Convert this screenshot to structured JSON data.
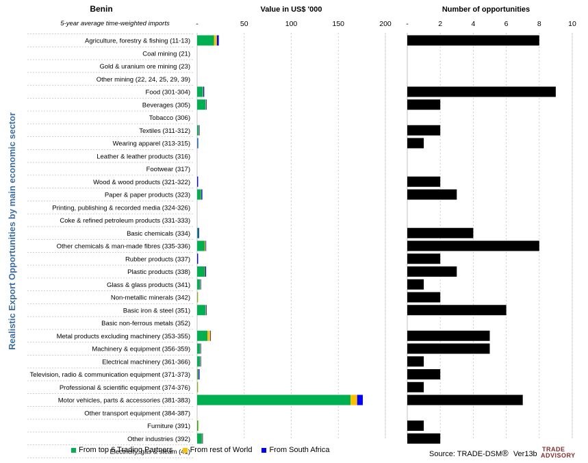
{
  "header": {
    "country": "Benin",
    "subtitle": "5-year average time-weighted imports",
    "left_axis_title": "Value in US$ '000",
    "right_axis_title": "Number of opportunities"
  },
  "y_axis_label": "Realistic Export Opportunities by main economic sector",
  "legend": {
    "top6": "From top 6 Trading Partners",
    "row": "From rest of World",
    "sa": "From South Africa"
  },
  "source": {
    "text": "Source: TRADE-DSM",
    "registered": "®",
    "version": "Ver13b"
  },
  "logo": {
    "line1": "TRADE",
    "line2": "ADVISORY"
  },
  "colors": {
    "top6": "#00b050",
    "row": "#ffc000",
    "sa": "#0000ff",
    "opp": "#000000",
    "ylabel": "#3b6ea5"
  },
  "chart_data": [
    {
      "type": "bar",
      "orientation": "horizontal",
      "stacked": true,
      "title": "Value in US$ '000",
      "xlim": [
        0,
        200
      ],
      "x_ticks": [
        "-",
        "50",
        "100",
        "150",
        "200"
      ],
      "categories": [
        "Agriculture, forestry & fishing (11-13)",
        "Coal mining (21)",
        "Gold & uranium ore mining (23)",
        "Other mining (22, 24, 25, 29, 39)",
        "Food (301-304)",
        "Beverages (305)",
        "Tobacco (306)",
        "Textiles (311-312)",
        "Wearing apparel (313-315)",
        "Leather & leather products (316)",
        "Footwear (317)",
        "Wood & wood products (321-322)",
        "Paper & paper products (323)",
        "Printing, publishing & recorded media (324-326)",
        "Coke & refined petroleum products (331-333)",
        "Basic chemicals (334)",
        "Other chemicals & man-made fibres (335-336)",
        "Rubber products (337)",
        "Plastic products (338)",
        "Glass & glass products (341)",
        "Non-metallic minerals (342)",
        "Basic iron & steel (351)",
        "Basic non-ferrous metals (352)",
        "Metal products excluding machinery (353-355)",
        "Machinery & equipment (356-359)",
        "Electrical machinery (361-366)",
        "Television, radio & communication equipment (371-373)",
        "Professional & scientific equipment (374-376)",
        "Motor vehicles, parts & accessories (381-383)",
        "Other transport equipment (384-387)",
        "Furniture (391)",
        "Other industries (392)",
        "Electricity, gas & steam (41)"
      ],
      "series": [
        {
          "name": "From top 6 Trading Partners",
          "values": [
            18,
            0,
            0,
            0,
            6,
            9,
            0,
            1.5,
            0.5,
            0,
            0,
            0,
            4,
            0,
            0,
            1,
            8,
            0,
            8,
            3,
            0.5,
            9,
            0,
            11,
            3,
            3,
            1,
            0.5,
            163,
            0,
            1,
            5,
            0
          ]
        },
        {
          "name": "From rest of World",
          "values": [
            3,
            0,
            0,
            0,
            0.5,
            0.5,
            0,
            0.5,
            0,
            0,
            0,
            0,
            0.5,
            0,
            0,
            0,
            1,
            0,
            0.5,
            0.5,
            0.5,
            0.5,
            0,
            3,
            0.5,
            0.5,
            0.5,
            0.3,
            7,
            0,
            0.5,
            0.5,
            0
          ]
        },
        {
          "name": "From South Africa",
          "values": [
            2,
            0,
            0,
            0,
            1,
            0.5,
            0,
            0.3,
            0.2,
            0,
            0,
            1,
            1,
            0,
            0,
            1,
            0.5,
            1,
            1,
            0.5,
            0,
            0.5,
            0,
            0.5,
            0.5,
            0.5,
            1,
            0,
            6,
            0,
            0,
            0.3,
            0
          ]
        }
      ]
    },
    {
      "type": "bar",
      "orientation": "horizontal",
      "title": "Number of opportunities",
      "xlim": [
        0,
        10
      ],
      "x_ticks": [
        "-",
        "2",
        "4",
        "6",
        "8",
        "10"
      ],
      "values": [
        8,
        0,
        0,
        0,
        9,
        2,
        0,
        2,
        1,
        0,
        0,
        2,
        3,
        0,
        0,
        4,
        8,
        2,
        3,
        1,
        2,
        6,
        0,
        5,
        5,
        1,
        2,
        1,
        7,
        0,
        1,
        2,
        0
      ]
    }
  ]
}
